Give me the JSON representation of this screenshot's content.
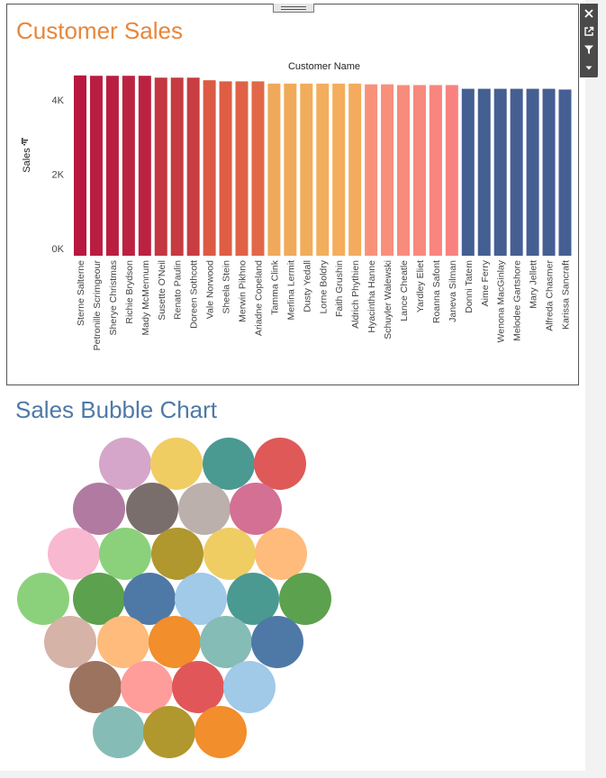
{
  "toolbar": {
    "icons": [
      "close-icon",
      "popout-icon",
      "filter-icon",
      "dropdown-icon"
    ]
  },
  "chart_data": [
    {
      "type": "bar",
      "title": "Customer Sales",
      "xlabel": "Customer Name",
      "ylabel": "Sales",
      "ylim": [
        0,
        5000
      ],
      "y_ticks": [
        {
          "value": 0,
          "label": "0K"
        },
        {
          "value": 2000,
          "label": "2K"
        },
        {
          "value": 4000,
          "label": "4K"
        }
      ],
      "grid": false,
      "categories": [
        "Sterne Salterne",
        "Petronille Scrimgeour",
        "Sherye Christmas",
        "Richie Brydson",
        "Mady McMennum",
        "Susette O'Neil",
        "Renato Paulin",
        "Doreen Sothcott",
        "Vale Norwood",
        "Sheela Stein",
        "Merwin Pikhno",
        "Ariadne Copeland",
        "Tamma Clink",
        "Merlina Lermit",
        "Dusty Yedall",
        "Lorne Boldry",
        "Faith Grushin",
        "Aldrich Phythien",
        "Hyacintha Hanne",
        "Schuyler Walewski",
        "Lance Cheatle",
        "Yardley Eliet",
        "Roanna Safont",
        "Janeva Silman",
        "Donni Tatem",
        "Aime Ferry",
        "Wenona MacGinlay",
        "Melodee Gartshore",
        "Mary Jellett",
        "Alfreda Chasmer",
        "Karissa Sancraft"
      ],
      "values": [
        4860,
        4850,
        4850,
        4850,
        4850,
        4800,
        4800,
        4800,
        4730,
        4700,
        4700,
        4700,
        4640,
        4640,
        4640,
        4640,
        4640,
        4640,
        4620,
        4620,
        4600,
        4600,
        4600,
        4600,
        4500,
        4500,
        4500,
        4500,
        4500,
        4500,
        4480
      ],
      "colors": [
        "#b8173f",
        "#b91e40",
        "#b91e40",
        "#bb2241",
        "#bb2241",
        "#c43641",
        "#c63a41",
        "#c83d41",
        "#dc5a44",
        "#de5e44",
        "#e06246",
        "#e26747",
        "#f0a95a",
        "#f0ab5a",
        "#f1ad5b",
        "#f2ae5c",
        "#f3ad5d",
        "#f4ab5e",
        "#f8917a",
        "#f88f7b",
        "#f88c7c",
        "#f8897d",
        "#f8857e",
        "#f8827f",
        "#445f92",
        "#445f92",
        "#455f92",
        "#455f92",
        "#455f93",
        "#455f93",
        "#465f93"
      ]
    },
    {
      "type": "scatter",
      "title": "Sales Bubble Chart",
      "bubble_colors": [
        "#d5a6c9",
        "#f0cd63",
        "#4a9a92",
        "#e05959",
        "#b07aa1",
        "#7a6e6c",
        "#bbb0ac",
        "#d47093",
        "#f8b8d0",
        "#8bd17b",
        "#b0972e",
        "#f0cd63",
        "#ffbb7b",
        "#8bd17b",
        "#5ca14e",
        "#4e79a7",
        "#a1c9e8",
        "#4a9a92",
        "#5ca14e",
        "#d5b3a7",
        "#ffbb7b",
        "#f28e2b",
        "#86bcb6",
        "#4e79a7",
        "#9c735f",
        "#ff9d9a",
        "#e15759",
        "#a1c9e8",
        "#86bcb6",
        "#b0972e",
        "#f28e2b"
      ]
    }
  ]
}
